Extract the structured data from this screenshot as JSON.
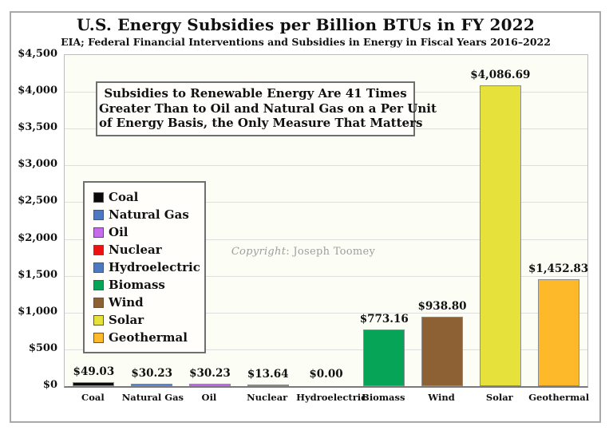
{
  "title": "U.S. Energy Subsidies per Billion BTUs in FY 2022",
  "subtitle": "EIA; Federal Financial Interventions and Subsidies in Energy in Fiscal Years 2016–2022",
  "annotation": {
    "lines": [
      "Subsidies to Renewable Energy Are 41 Times",
      "Greater Than to Oil and Natural Gas on a Per Unit",
      "of Energy Basis, the Only Measure That Matters"
    ]
  },
  "copyright": {
    "label": "Copyright",
    "text": ": Joseph Toomey"
  },
  "chart_data": {
    "type": "bar",
    "title": "U.S. Energy Subsidies per Billion BTUs in FY 2022",
    "subtitle": "EIA; Federal Financial Interventions and Subsidies in Energy in Fiscal Years 2016–2022",
    "categories": [
      "Coal",
      "Natural Gas",
      "Oil",
      "Nuclear",
      "Hydroelectric",
      "Biomass",
      "Wind",
      "Solar",
      "Geothermal"
    ],
    "values": [
      49.03,
      30.23,
      30.23,
      13.64,
      0.0,
      773.16,
      938.8,
      4086.69,
      1452.83
    ],
    "value_labels": [
      "$49.03",
      "$30.23",
      "$30.23",
      "$13.64",
      "$0.00",
      "$773.16",
      "$938.80",
      "$4,086.69",
      "$1,452.83"
    ],
    "bar_colors": [
      "#0a0a0a",
      "#4d79c0",
      "#c46bee",
      "#ee1111",
      "#4d79c0",
      "#06a457",
      "#8e6134",
      "#e7e23b",
      "#fdb92a"
    ],
    "xlabel": "",
    "ylabel": "",
    "ylim": [
      0,
      4500
    ],
    "y_tick_step": 500,
    "y_tick_labels": [
      "$0",
      "$500",
      "$1,000",
      "$1,500",
      "$2,000",
      "$2,500",
      "$3,000",
      "$3,500",
      "$4,000",
      "$4,500"
    ],
    "grid": "horizontal",
    "legend_position": "middle-left",
    "legend": [
      {
        "label": "Coal",
        "color": "#0a0a0a"
      },
      {
        "label": "Natural Gas",
        "color": "#4d79c0"
      },
      {
        "label": "Oil",
        "color": "#c46bee"
      },
      {
        "label": "Nuclear",
        "color": "#ee1111"
      },
      {
        "label": "Hydroelectric",
        "color": "#4d79c0"
      },
      {
        "label": "Biomass",
        "color": "#06a457"
      },
      {
        "label": "Wind",
        "color": "#8e6134"
      },
      {
        "label": "Solar",
        "color": "#e7e23b"
      },
      {
        "label": "Geothermal",
        "color": "#fdb92a"
      }
    ]
  }
}
